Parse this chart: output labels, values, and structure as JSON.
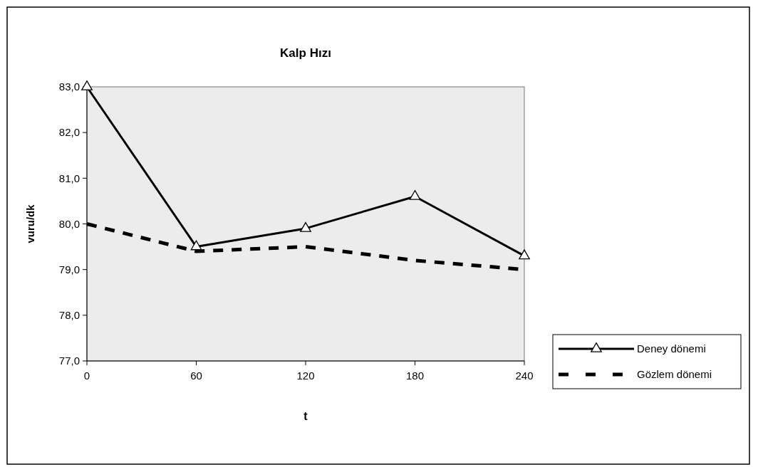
{
  "chart_data": {
    "type": "line",
    "title": "Kalp Hızı",
    "xlabel": "t",
    "ylabel": "vuru/dk",
    "x": [
      0,
      60,
      120,
      180,
      240
    ],
    "xlim": [
      0,
      240
    ],
    "xticks": [
      0,
      60,
      120,
      180,
      240
    ],
    "ylim": [
      77,
      83
    ],
    "yticks": [
      {
        "value": 77,
        "label": "77,0"
      },
      {
        "value": 78,
        "label": "78,0"
      },
      {
        "value": 79,
        "label": "79,0"
      },
      {
        "value": 80,
        "label": "80,0"
      },
      {
        "value": 81,
        "label": "81,0"
      },
      {
        "value": 82,
        "label": "82,0"
      },
      {
        "value": 83,
        "label": "83,0"
      }
    ],
    "grid": false,
    "legend": "right",
    "series": [
      {
        "name": "Deney dönemi",
        "color": "#000000",
        "values": [
          83.0,
          79.5,
          79.9,
          80.6,
          79.3
        ],
        "marker": "triangle",
        "line_style": "solid"
      },
      {
        "name": "Gözlem dönemi",
        "color": "#000000",
        "values": [
          80.0,
          79.4,
          79.5,
          79.2,
          79.0
        ],
        "marker": "none",
        "line_style": "dashed"
      }
    ]
  }
}
